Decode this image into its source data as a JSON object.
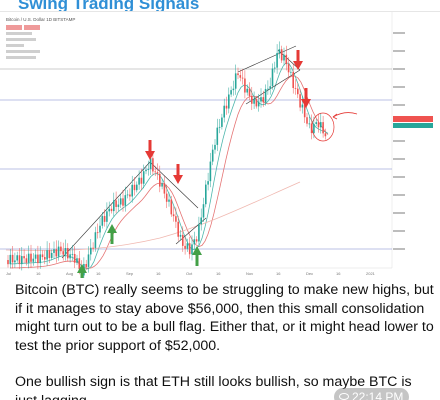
{
  "header": {
    "title": "Swing Trading Signals"
  },
  "chart": {
    "title": "Bitcoin / U.S. Dollar 1D BITSTAMP",
    "x_tick_labels": [
      "Jul",
      "16",
      "Aug",
      "16",
      "Sep",
      "16",
      "Oct",
      "16",
      "Nov",
      "16",
      "Dec",
      "16",
      "2021"
    ],
    "colors": {
      "up": "#26a69a",
      "down": "#ef5350",
      "ma_fast": "#4db6ac",
      "ma_slow": "#e57373",
      "ma_long": "#f0b8b0",
      "trendline": "#333333",
      "horizontal": "#7986cb",
      "signal_down": "#e53935",
      "signal_up": "#43a047"
    }
  },
  "message": {
    "paragraph1": "Bitcoin (BTC) really seems to be struggling to make new highs, but if it manages to stay above $56,000, then this small consolidation might turn out to be a bull flag. Either that, or it might head lower to test the prior support of $52,000.",
    "paragraph2": "One bullish sign is that ETH still looks bullish, so maybe BTC is just lagging..."
  },
  "footer": {
    "time": "22:14 PM"
  }
}
